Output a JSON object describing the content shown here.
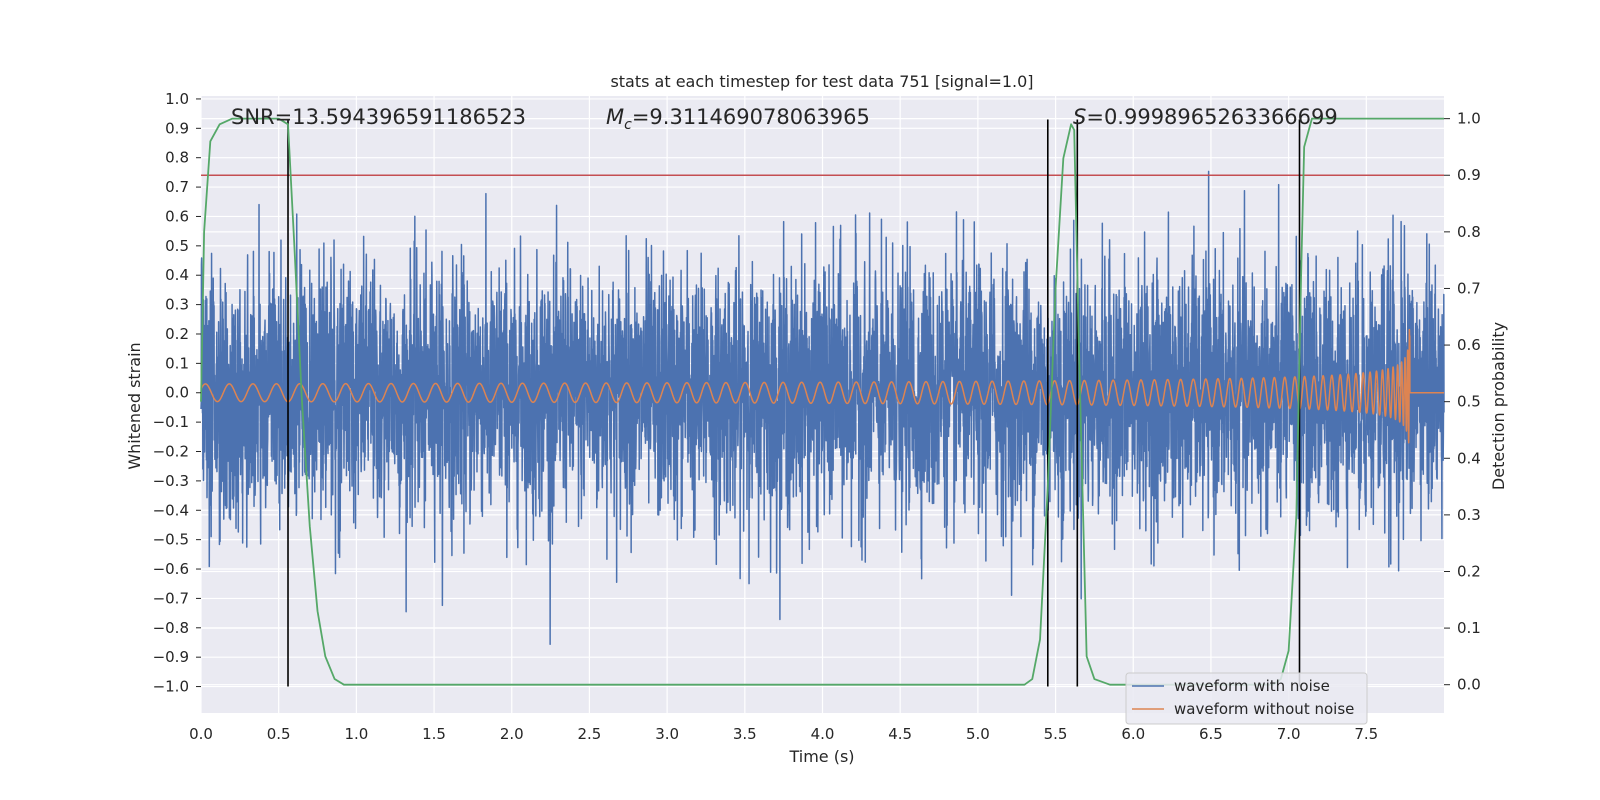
{
  "chart_data": {
    "type": "line",
    "title": "stats at each timestep for test data 751 [signal=1.0]",
    "xlabel": "Time (s)",
    "ylabel": "Whitened strain",
    "y2label": "Detection probability",
    "xlim": [
      0.0,
      8.0
    ],
    "ylim": [
      -1.09,
      1.01
    ],
    "y2lim": [
      -0.05,
      1.04
    ],
    "x_ticks": [
      "0.0",
      "0.5",
      "1.0",
      "1.5",
      "2.0",
      "2.5",
      "3.0",
      "3.5",
      "4.0",
      "4.5",
      "5.0",
      "5.5",
      "6.0",
      "6.5",
      "7.0",
      "7.5"
    ],
    "y_ticks": [
      "1.0",
      "0.9",
      "0.8",
      "0.7",
      "0.6",
      "0.5",
      "0.4",
      "0.3",
      "0.2",
      "0.1",
      "0.0",
      "−0.1",
      "−0.2",
      "−0.3",
      "−0.4",
      "−0.5",
      "−0.6",
      "−0.7",
      "−0.8",
      "−0.9",
      "−1.0"
    ],
    "y2_ticks": [
      "1.0",
      "0.9",
      "0.8",
      "0.7",
      "0.6",
      "0.5",
      "0.4",
      "0.3",
      "0.2",
      "0.1",
      "0.0"
    ],
    "grid": true,
    "legend": "bottom-right",
    "annotations": {
      "snr": "SNR=13.594396591186523",
      "mc_symbol": "M",
      "mc_sub": "c",
      "mc_value": "=9.311469078063965",
      "s_symbol": "S",
      "s_value": "=0.9998965263366699"
    },
    "series": [
      {
        "name": "waveform with noise",
        "color": "#4c72b0",
        "envelope": "noise, spread approx ±0.4, peaks up to 0.93 and down to −0.94"
      },
      {
        "name": "waveform without noise",
        "color": "#dd8452",
        "chirp": {
          "start_amplitude": 0.03,
          "peak_time": 7.78,
          "peak_max": 0.41,
          "peak_min": -0.61
        }
      },
      {
        "name": "detection probability",
        "color": "#55a868",
        "axis": "y2",
        "x": [
          0.0,
          0.02,
          0.06,
          0.12,
          0.2,
          0.3,
          0.4,
          0.5,
          0.56,
          0.6,
          0.65,
          0.7,
          0.75,
          0.8,
          0.86,
          0.92,
          1.0,
          1.5,
          2.0,
          3.0,
          4.0,
          5.0,
          5.3,
          5.35,
          5.4,
          5.45,
          5.5,
          5.55,
          5.6,
          5.62,
          5.65,
          5.7,
          5.75,
          5.85,
          6.0,
          6.5,
          6.9,
          6.95,
          7.0,
          7.05,
          7.08,
          7.1,
          7.15,
          7.2,
          7.5,
          8.0
        ],
        "y": [
          0.5,
          0.8,
          0.96,
          0.99,
          1.0,
          1.0,
          1.0,
          1.0,
          0.99,
          0.78,
          0.5,
          0.28,
          0.13,
          0.05,
          0.01,
          0.0,
          0.0,
          0.0,
          0.0,
          0.0,
          0.0,
          0.0,
          0.0,
          0.01,
          0.08,
          0.35,
          0.7,
          0.93,
          0.99,
          0.98,
          0.6,
          0.05,
          0.01,
          0.0,
          0.0,
          0.0,
          0.0,
          0.01,
          0.06,
          0.3,
          0.72,
          0.95,
          1.0,
          1.0,
          1.0,
          1.0
        ]
      }
    ],
    "threshold": {
      "axis": "y2",
      "value": 0.9,
      "color": "#c44e52"
    },
    "event_lines": {
      "x": [
        0.56,
        5.45,
        5.64,
        7.07
      ],
      "ymin": -1.0,
      "ymax": 0.93,
      "color": "#000000"
    }
  },
  "legend": {
    "items": [
      {
        "label": "waveform with noise",
        "color": "#4c72b0"
      },
      {
        "label": "waveform without noise",
        "color": "#dd8452"
      }
    ]
  }
}
